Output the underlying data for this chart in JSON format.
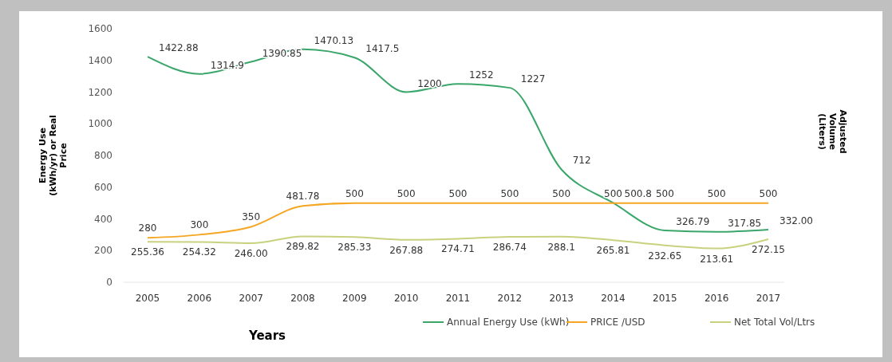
{
  "chart_data": {
    "type": "line",
    "xlabel": "Years",
    "ylabel": "Energy Use (kWh/yr) or Real Price",
    "y2label": "Adjusted Volume (Liters)",
    "categories": [
      "2005",
      "2006",
      "2007",
      "2008",
      "2009",
      "2010",
      "2011",
      "2012",
      "2013",
      "2014",
      "2015",
      "2016",
      "2017"
    ],
    "ylim": [
      0,
      1600
    ],
    "yticks": [
      0,
      200,
      400,
      800,
      1000,
      1200,
      1400,
      1600,
      600
    ],
    "legend": "bottom right",
    "grid": false,
    "series": [
      {
        "name": "Annual Energy Use (kWh)",
        "color": "#3aa66a",
        "values": [
          1422.88,
          1314.9,
          1390.85,
          1470.13,
          1417.5,
          1200,
          1252,
          1227,
          712,
          500.8,
          326.79,
          317.85,
          332.0
        ],
        "value_labels": [
          "1422.88",
          "1314.9",
          "1390.85",
          "1470.13",
          "1417.5",
          "1200",
          "1252",
          "1227",
          "712",
          "500.8",
          "326.79",
          "317.85",
          "332.00"
        ]
      },
      {
        "name": "PRICE /USD",
        "color": "#f5a623",
        "values": [
          280,
          300,
          350,
          481.78,
          500,
          500,
          500,
          500,
          500,
          500,
          500,
          500,
          500
        ],
        "value_labels": [
          "280",
          "300",
          "350",
          "481.78",
          "500",
          "500",
          "500",
          "500",
          "500",
          "500",
          "500",
          "500",
          "500"
        ]
      },
      {
        "name": "Net Total Vol/Ltrs",
        "color": "#c8d27e",
        "values": [
          255.36,
          254.32,
          246.0,
          289.82,
          285.33,
          267.88,
          274.71,
          286.74,
          288.1,
          265.81,
          232.65,
          213.61,
          272.15
        ],
        "value_labels": [
          "255.36",
          "254.32",
          "246.00",
          "289.82",
          "285.33",
          "267.88",
          "274.71",
          "286.74",
          "288.1",
          "265.81",
          "232.65",
          "213.61",
          "272.15"
        ]
      }
    ]
  }
}
